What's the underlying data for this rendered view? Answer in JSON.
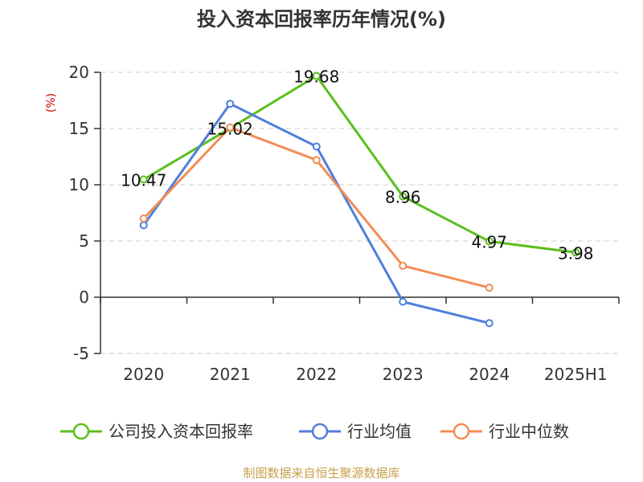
{
  "chart_data": {
    "type": "line",
    "title": "投入资本回报率历年情况(%)",
    "ylabel": "(%)",
    "categories": [
      "2020",
      "2021",
      "2022",
      "2023",
      "2024",
      "2025H1"
    ],
    "ylim": [
      -5,
      20
    ],
    "yticks": [
      -5,
      0,
      5,
      10,
      15,
      20
    ],
    "grid": true,
    "legend_position": "bottom",
    "series": [
      {
        "name": "公司投入资本回报率",
        "color": "#5cbf1e",
        "values": [
          10.47,
          15.02,
          19.68,
          8.96,
          4.97,
          3.98
        ],
        "labels": [
          "10.47",
          "15.02",
          "19.68",
          "8.96",
          "4.97",
          "3.98"
        ]
      },
      {
        "name": "行业均值",
        "color": "#4f7fdc",
        "values": [
          6.4,
          17.2,
          13.4,
          -0.4,
          -2.3,
          null
        ]
      },
      {
        "name": "行业中位数",
        "color": "#f28c57",
        "values": [
          7.0,
          15.1,
          12.2,
          2.8,
          0.85,
          null
        ]
      }
    ]
  },
  "source": "制图数据来自恒生聚源数据库"
}
